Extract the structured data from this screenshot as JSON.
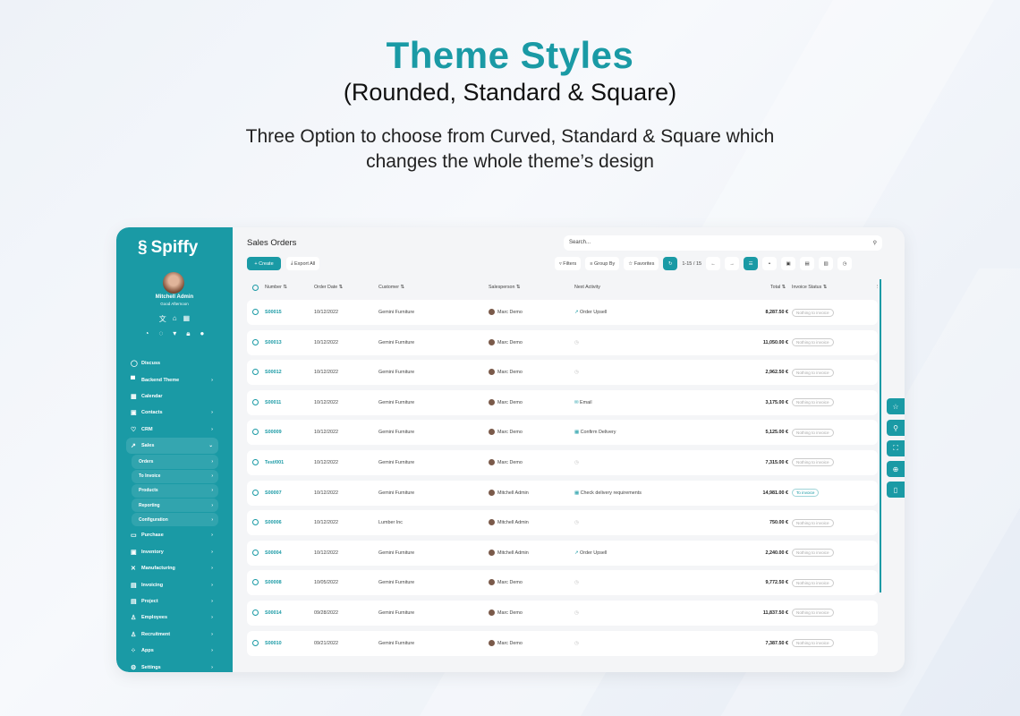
{
  "hero": {
    "title": "Theme Styles",
    "subtitle": "(Rounded, Standard & Square)",
    "description_line1": "Three Option to choose from Curved, Standard & Square which",
    "description_line2": "changes the whole theme’s design"
  },
  "colors": {
    "accent": "#1a9aa5"
  },
  "sidebar": {
    "logo": "Spiffy",
    "user_name": "Mitchell Admin",
    "greeting": "Good Afternoon",
    "items": [
      {
        "label": "Discuss",
        "icon": "chat-icon",
        "chevron": false
      },
      {
        "label": "Backend Theme",
        "icon": "paint-roller-icon",
        "chevron": true
      },
      {
        "label": "Calendar",
        "icon": "calendar-icon",
        "chevron": false
      },
      {
        "label": "Contacts",
        "icon": "contacts-icon",
        "chevron": true
      },
      {
        "label": "CRM",
        "icon": "handshake-icon",
        "chevron": true
      },
      {
        "label": "Sales",
        "icon": "chart-icon",
        "chevron": true,
        "expanded": true
      }
    ],
    "sub_items": [
      "Orders",
      "To Invoice",
      "Products",
      "Reporting",
      "Configuration"
    ],
    "items_after": [
      {
        "label": "Purchase",
        "icon": "card-icon"
      },
      {
        "label": "Inventory",
        "icon": "box-icon"
      },
      {
        "label": "Manufacturing",
        "icon": "tools-icon"
      },
      {
        "label": "Invoicing",
        "icon": "invoice-icon"
      },
      {
        "label": "Project",
        "icon": "project-icon"
      },
      {
        "label": "Employees",
        "icon": "users-icon"
      },
      {
        "label": "Recruitment",
        "icon": "user-plus-icon"
      },
      {
        "label": "Apps",
        "icon": "apps-icon"
      },
      {
        "label": "Settings",
        "icon": "gear-icon"
      }
    ]
  },
  "main": {
    "title": "Sales Orders",
    "search_placeholder": "Search...",
    "create": "+ Create",
    "export": "Export All",
    "filters": "Filters",
    "group_by": "Group By",
    "favorites": "Favorites",
    "pager": "1-15 / 15",
    "columns": [
      "Number",
      "Order Date",
      "Customer",
      "Salesperson",
      "Next Activity",
      "Total",
      "Invoice Status"
    ],
    "rows": [
      {
        "number": "S00015",
        "date": "10/12/2022",
        "customer": "Gemini Furniture",
        "salesperson": "Marc Demo",
        "activity": "Order Upsell",
        "activity_icon": "chart-icon",
        "total": "8,287.50 €",
        "status": "Nothing to invoice"
      },
      {
        "number": "S00013",
        "date": "10/12/2022",
        "customer": "Gemini Furniture",
        "salesperson": "Marc Demo",
        "activity": "",
        "activity_icon": "clock-icon",
        "total": "11,050.00 €",
        "status": "Nothing to invoice"
      },
      {
        "number": "S00012",
        "date": "10/12/2022",
        "customer": "Gemini Furniture",
        "salesperson": "Marc Demo",
        "activity": "",
        "activity_icon": "clock-icon",
        "total": "2,962.50 €",
        "status": "Nothing to invoice"
      },
      {
        "number": "S00011",
        "date": "10/12/2022",
        "customer": "Gemini Furniture",
        "salesperson": "Marc Demo",
        "activity": "Email",
        "activity_icon": "mail-icon",
        "total": "3,175.00 €",
        "status": "Nothing to invoice"
      },
      {
        "number": "S00009",
        "date": "10/12/2022",
        "customer": "Gemini Furniture",
        "salesperson": "Marc Demo",
        "activity": "Confirm Delivery",
        "activity_icon": "calendar-icon",
        "total": "5,125.00 €",
        "status": "Nothing to invoice"
      },
      {
        "number": "Test/001",
        "date": "10/12/2022",
        "customer": "Gemini Furniture",
        "salesperson": "Marc Demo",
        "activity": "",
        "activity_icon": "clock-icon",
        "total": "7,315.00 €",
        "status": "Nothing to invoice"
      },
      {
        "number": "S00007",
        "date": "10/12/2022",
        "customer": "Gemini Furniture",
        "salesperson": "Mitchell Admin",
        "activity": "Check delivery requirements",
        "activity_icon": "calendar-icon",
        "total": "14,981.00 €",
        "status": "To invoice"
      },
      {
        "number": "S00006",
        "date": "10/12/2022",
        "customer": "Lumber Inc",
        "salesperson": "Mitchell Admin",
        "activity": "",
        "activity_icon": "clock-icon",
        "total": "750.00 €",
        "status": "Nothing to invoice"
      },
      {
        "number": "S00004",
        "date": "10/12/2022",
        "customer": "Gemini Furniture",
        "salesperson": "Mitchell Admin",
        "activity": "Order Upsell",
        "activity_icon": "chart-icon",
        "total": "2,240.00 €",
        "status": "Nothing to invoice"
      },
      {
        "number": "S00008",
        "date": "10/05/2022",
        "customer": "Gemini Furniture",
        "salesperson": "Marc Demo",
        "activity": "",
        "activity_icon": "clock-icon",
        "total": "9,772.50 €",
        "status": "Nothing to invoice"
      },
      {
        "number": "S00014",
        "date": "09/28/2022",
        "customer": "Gemini Furniture",
        "salesperson": "Marc Demo",
        "activity": "",
        "activity_icon": "clock-icon",
        "total": "11,837.50 €",
        "status": "Nothing to invoice"
      },
      {
        "number": "S00010",
        "date": "09/21/2022",
        "customer": "Gemini Furniture",
        "salesperson": "Marc Demo",
        "activity": "",
        "activity_icon": "clock-icon",
        "total": "7,387.50 €",
        "status": "Nothing to invoice"
      }
    ]
  }
}
